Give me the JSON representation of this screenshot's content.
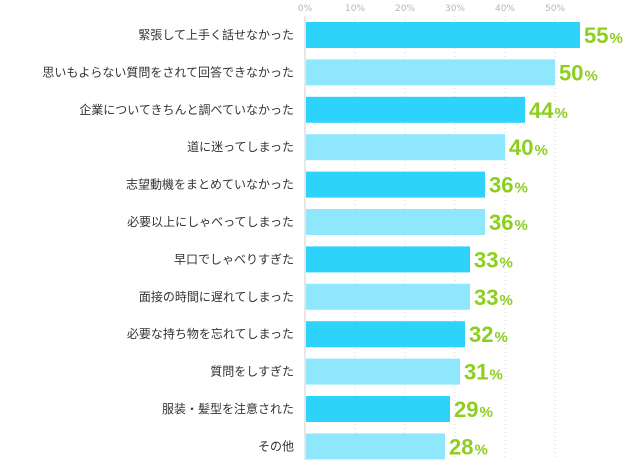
{
  "chart_data": {
    "type": "bar",
    "orientation": "horizontal",
    "categories": [
      "緊張して上手く話せなかった",
      "思いもよらない質問をされて回答できなかった",
      "企業についてきちんと調べていなかった",
      "道に迷ってしまった",
      "志望動機をまとめていなかった",
      "必要以上にしゃべってしまった",
      "早口でしゃべりすぎた",
      "面接の時間に遅れてしまった",
      "必要な持ち物を忘れてしまった",
      "質問をしすぎた",
      "服装・髪型を注意された",
      "その他"
    ],
    "values": [
      55,
      50,
      44,
      40,
      36,
      36,
      33,
      33,
      32,
      31,
      29,
      28
    ],
    "value_labels": [
      "55",
      "50",
      "44",
      "40",
      "36",
      "36",
      "33",
      "33",
      "32",
      "31",
      "29",
      "28"
    ],
    "unit": "%",
    "x_ticks": [
      "0%",
      "10%",
      "20%",
      "30%",
      "40%",
      "50%"
    ],
    "xlim": [
      0,
      50
    ],
    "title": "",
    "xlabel": "",
    "ylabel": "",
    "grid": true,
    "colors": {
      "bar_dark": "#2ed3fb",
      "bar_light": "#8ee7fd",
      "value_label": "#8ccf1e",
      "tick_label": "#b6b6b6",
      "gridline": "#d9d9d9",
      "category_label": "#333333"
    }
  }
}
